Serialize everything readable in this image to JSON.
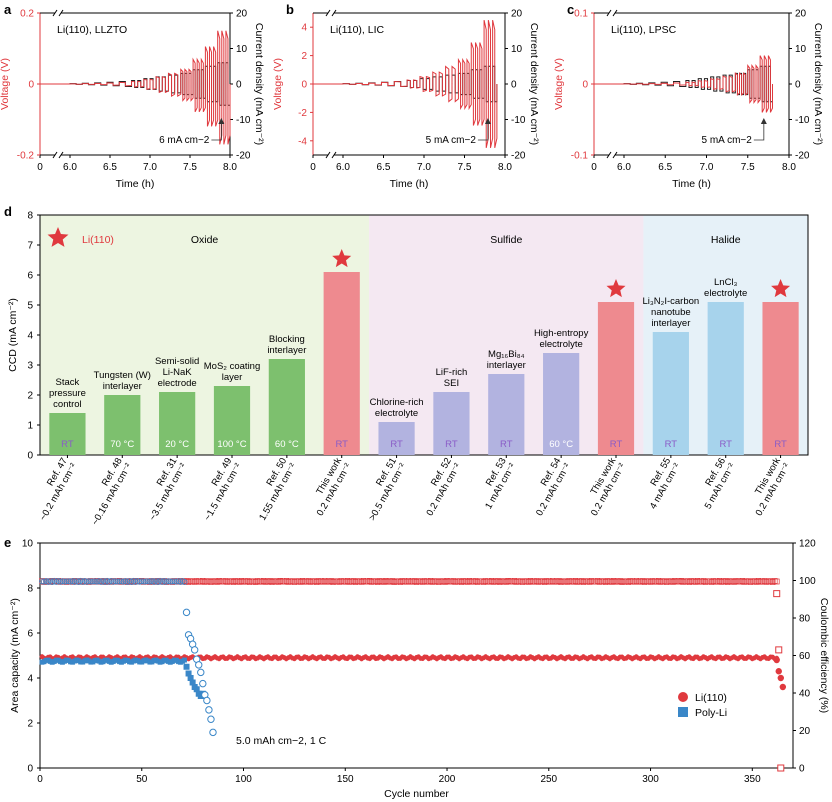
{
  "colors": {
    "red": "#e0393e",
    "black": "#222222",
    "pink": "#ee8a8f",
    "green": "#7dc06e",
    "lavender": "#b2b3e0",
    "lightblue": "#a7d3ec",
    "purple": "#8a5cc7",
    "bg_oxide": "#edf5e1",
    "bg_sulfide": "#f4e8f2",
    "bg_halide": "#e6f1f8",
    "blue": "#3a87c8"
  },
  "chart_data": [
    {
      "panel": "a",
      "type": "line",
      "label": "Li(110), LLZTO",
      "xlabel": "Time (h)",
      "ylabel_left": "Voltage (V)",
      "ylabel_right": "Current density (mA cm⁻²)",
      "xlim": [
        0,
        8.0
      ],
      "xticks": [
        "0",
        "6.0",
        "6.5",
        "7.0",
        "7.5",
        "8.0"
      ],
      "ylim_left": [
        -0.2,
        0.2
      ],
      "yticks_left": [
        "0.2",
        "0",
        "-0.2"
      ],
      "ylim_right": [
        -20,
        20
      ],
      "yticks_right": [
        "20",
        "10",
        "0",
        "-10",
        "-20"
      ],
      "annotation": "6 mA cm−2",
      "steps": [
        0.1,
        0.2,
        0.3,
        0.5,
        0.7,
        1,
        1.5,
        2,
        2.5,
        3,
        4,
        5,
        6
      ],
      "step_start": 6.0,
      "step_end": 8.0,
      "voltage_max": 0.15,
      "voltage_min": -0.17
    },
    {
      "panel": "b",
      "type": "line",
      "label": "Li(110), LIC",
      "xlabel": "Time (h)",
      "ylabel_left": "Voltage (V)",
      "ylabel_right": "Current density (mA cm⁻²)",
      "xlim": [
        0,
        8.0
      ],
      "xticks": [
        "0",
        "6.0",
        "6.5",
        "7.0",
        "7.5",
        "8.0"
      ],
      "ylim_left": [
        -5,
        5
      ],
      "yticks_left": [
        "4",
        "2",
        "0",
        "-2",
        "-4"
      ],
      "ylim_right": [
        -20,
        20
      ],
      "yticks_right": [
        "20",
        "10",
        "0",
        "-10",
        "-20"
      ],
      "annotation": "5 mA cm−2",
      "steps": [
        0.1,
        0.2,
        0.3,
        0.5,
        0.7,
        1,
        1.5,
        2,
        2.5,
        3,
        4,
        5
      ],
      "step_start": 6.0,
      "step_end": 7.9,
      "voltage_max": 4.5,
      "voltage_min": -4.5
    },
    {
      "panel": "c",
      "type": "line",
      "label": "Li(110), LPSC",
      "xlabel": "Time (h)",
      "ylabel_left": "Voltage (V)",
      "ylabel_right": "Current density (mA cm⁻²)",
      "xlim": [
        0,
        8.0
      ],
      "xticks": [
        "0",
        "6.0",
        "6.5",
        "7.0",
        "7.5",
        "8.0"
      ],
      "ylim_left": [
        -0.1,
        0.1
      ],
      "yticks_left": [
        "0.1",
        "0",
        "-0.1"
      ],
      "ylim_right": [
        -20,
        20
      ],
      "yticks_right": [
        "20",
        "10",
        "0",
        "-10",
        "-20"
      ],
      "annotation": "5 mA cm−2",
      "steps": [
        0.1,
        0.2,
        0.3,
        0.5,
        0.7,
        1,
        1.5,
        2,
        2.5,
        3,
        4,
        5
      ],
      "step_start": 6.0,
      "step_end": 7.8,
      "voltage_max": 0.04,
      "voltage_min": -0.04
    },
    {
      "panel": "d",
      "type": "bar",
      "ylabel": "CCD (mA cm⁻²)",
      "ylim": [
        0,
        8
      ],
      "yticks": [
        "0",
        "1",
        "2",
        "3",
        "4",
        "5",
        "6",
        "7",
        "8"
      ],
      "legend": "Li(110)",
      "groups": [
        {
          "name": "Oxide",
          "start": 0,
          "end": 5,
          "bg": "bg_oxide"
        },
        {
          "name": "Sulfide",
          "start": 6,
          "end": 10,
          "bg": "bg_sulfide"
        },
        {
          "name": "Halide",
          "start": 11,
          "end": 13,
          "bg": "bg_halide"
        }
      ],
      "bars": [
        {
          "value": 1.4,
          "color": "green",
          "temp": "RT",
          "desc": [
            "Stack",
            "pressure",
            "control"
          ],
          "tick": [
            "Ref. 47",
            "~0.2 mAh cm⁻²"
          ]
        },
        {
          "value": 2.0,
          "color": "green",
          "temp": "70 °C",
          "desc": [
            "Tungsten (W)",
            "interlayer"
          ],
          "tick": [
            "Ref. 48",
            "~0.16 mAh cm⁻²"
          ]
        },
        {
          "value": 2.1,
          "color": "green",
          "temp": "20 °C",
          "desc": [
            "Semi-solid",
            "Li-NaK",
            "electrode"
          ],
          "tick": [
            "Ref. 31",
            "~3.5 mAh cm⁻²"
          ]
        },
        {
          "value": 2.3,
          "color": "green",
          "temp": "100 °C",
          "desc": [
            "MoS₂ coating",
            "layer"
          ],
          "tick": [
            "Ref. 49",
            "~1.5 mAh cm⁻²"
          ]
        },
        {
          "value": 3.2,
          "color": "green",
          "temp": "60 °C",
          "desc": [
            "Blocking",
            "interlayer"
          ],
          "tick": [
            "Ref. 50",
            "1.55 mAh cm⁻²"
          ]
        },
        {
          "value": 6.1,
          "color": "pink",
          "temp": "RT",
          "desc": [],
          "star": true,
          "tick": [
            "This work",
            "0.2 mAh cm⁻²"
          ]
        },
        {
          "value": 1.1,
          "color": "lavender",
          "temp": "RT",
          "desc": [
            "Chlorine-rich",
            "electrolyte"
          ],
          "tick": [
            "Ref. 51",
            ">0.5 mAh cm⁻²"
          ]
        },
        {
          "value": 2.1,
          "color": "lavender",
          "temp": "RT",
          "desc": [
            "LiF-rich",
            "SEI"
          ],
          "tick": [
            "Ref. 52",
            "0.2 mAh cm⁻²"
          ]
        },
        {
          "value": 2.7,
          "color": "lavender",
          "temp": "RT",
          "desc": [
            "Mg₁₆Bi₈₄",
            "interlayer"
          ],
          "tick": [
            "Ref. 53",
            "1 mAh cm⁻²"
          ]
        },
        {
          "value": 3.4,
          "color": "lavender",
          "temp": "60 °C",
          "desc": [
            "High-entropy",
            "electrolyte"
          ],
          "tick": [
            "Ref. 54",
            "0.2 mAh cm⁻²"
          ]
        },
        {
          "value": 5.1,
          "color": "pink",
          "temp": "RT",
          "desc": [],
          "star": true,
          "tick": [
            "This work",
            "0.2 mAh cm⁻²"
          ]
        },
        {
          "value": 4.1,
          "color": "lightblue",
          "temp": "RT",
          "desc": [
            "Li₃N₂I-carbon",
            "nanotube",
            "interlayer"
          ],
          "tick": [
            "Ref. 55",
            "4 mAh cm⁻²"
          ]
        },
        {
          "value": 5.1,
          "color": "lightblue",
          "temp": "RT",
          "desc": [
            "LnCl₃",
            "electrolyte"
          ],
          "tick": [
            "Ref. 56",
            "5 mAh cm⁻²"
          ]
        },
        {
          "value": 5.1,
          "color": "pink",
          "temp": "RT",
          "desc": [],
          "star": true,
          "tick": [
            "This work",
            "0.2 mAh cm⁻²"
          ]
        }
      ]
    },
    {
      "panel": "e",
      "type": "scatter",
      "xlabel": "Cycle number",
      "ylabel_left": "Area capacity (mA cm⁻²)",
      "ylabel_right": "Coulombic efficiency (%)",
      "xlim": [
        0,
        370
      ],
      "xticks": [
        "0",
        "50",
        "100",
        "150",
        "200",
        "250",
        "300",
        "350"
      ],
      "ylim_left": [
        0,
        10
      ],
      "yticks_left": [
        "0",
        "2",
        "4",
        "6",
        "8",
        "10"
      ],
      "ylim_right": [
        0,
        120
      ],
      "yticks_right": [
        "0",
        "20",
        "40",
        "60",
        "80",
        "100",
        "120"
      ],
      "annotation": "5.0 mAh cm−2, 1 C",
      "series": [
        {
          "name": "Li(110)",
          "color": "red",
          "capacity": 4.9,
          "ce": 99.5,
          "cycles": 362,
          "tail_capacity": [
            [
              362,
              4.8
            ],
            [
              363,
              4.3
            ],
            [
              364,
              4.0
            ],
            [
              365,
              3.6
            ]
          ],
          "tail_ce": [
            [
              362,
              93
            ],
            [
              363,
              63
            ],
            [
              364,
              0
            ]
          ]
        },
        {
          "name": "Poly-Li",
          "color": "blue",
          "capacity": 4.75,
          "ce": 99.5,
          "cycles": 71,
          "tail_capacity": [
            [
              72,
              4.5
            ],
            [
              73,
              4.2
            ],
            [
              74,
              4.0
            ],
            [
              75,
              3.8
            ],
            [
              76,
              3.6
            ],
            [
              77,
              3.5
            ],
            [
              78,
              3.3
            ],
            [
              79,
              3.2
            ],
            [
              80,
              3.3
            ],
            [
              81,
              3.2
            ]
          ],
          "tail_ce": [
            [
              72,
              83
            ],
            [
              73,
              71
            ],
            [
              74,
              69
            ],
            [
              75,
              66
            ],
            [
              76,
              63
            ],
            [
              77,
              58
            ],
            [
              78,
              55
            ],
            [
              79,
              51
            ],
            [
              80,
              45
            ],
            [
              81,
              39
            ],
            [
              82,
              36
            ],
            [
              83,
              31
            ],
            [
              84,
              26
            ],
            [
              85,
              19
            ]
          ]
        }
      ]
    }
  ],
  "panel_labels": {
    "a": "a",
    "b": "b",
    "c": "c",
    "d": "d",
    "e": "e"
  }
}
